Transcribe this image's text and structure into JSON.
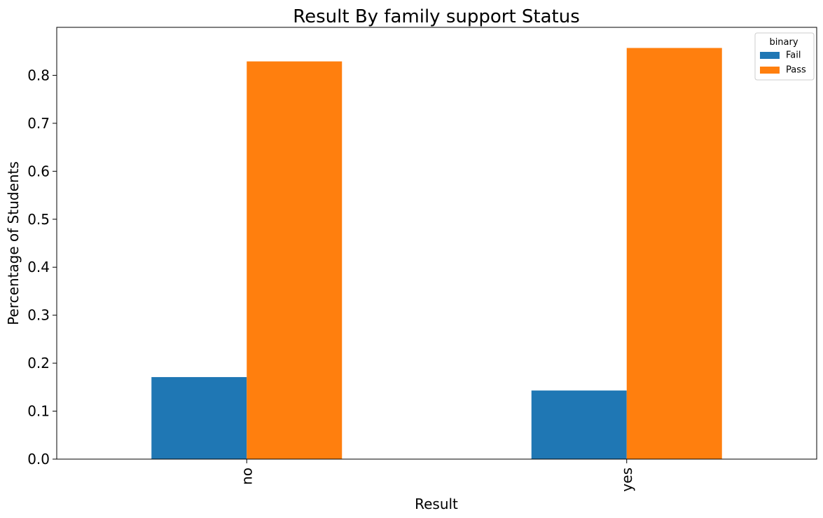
{
  "chart_data": {
    "type": "bar",
    "title": "Result By family support Status",
    "xlabel": "Result",
    "ylabel": "Percentage of Students",
    "categories": [
      "no",
      "yes"
    ],
    "series": [
      {
        "name": "Fail",
        "values": [
          0.171,
          0.143
        ],
        "color": "#1f77b4"
      },
      {
        "name": "Pass",
        "values": [
          0.829,
          0.857
        ],
        "color": "#ff7f0e"
      }
    ],
    "ylim": [
      0,
      0.9
    ],
    "yticks": [
      "0.0",
      "0.1",
      "0.2",
      "0.3",
      "0.4",
      "0.5",
      "0.6",
      "0.7",
      "0.8"
    ],
    "grid": false,
    "legend": {
      "title": "binary",
      "position": "top-right"
    }
  }
}
